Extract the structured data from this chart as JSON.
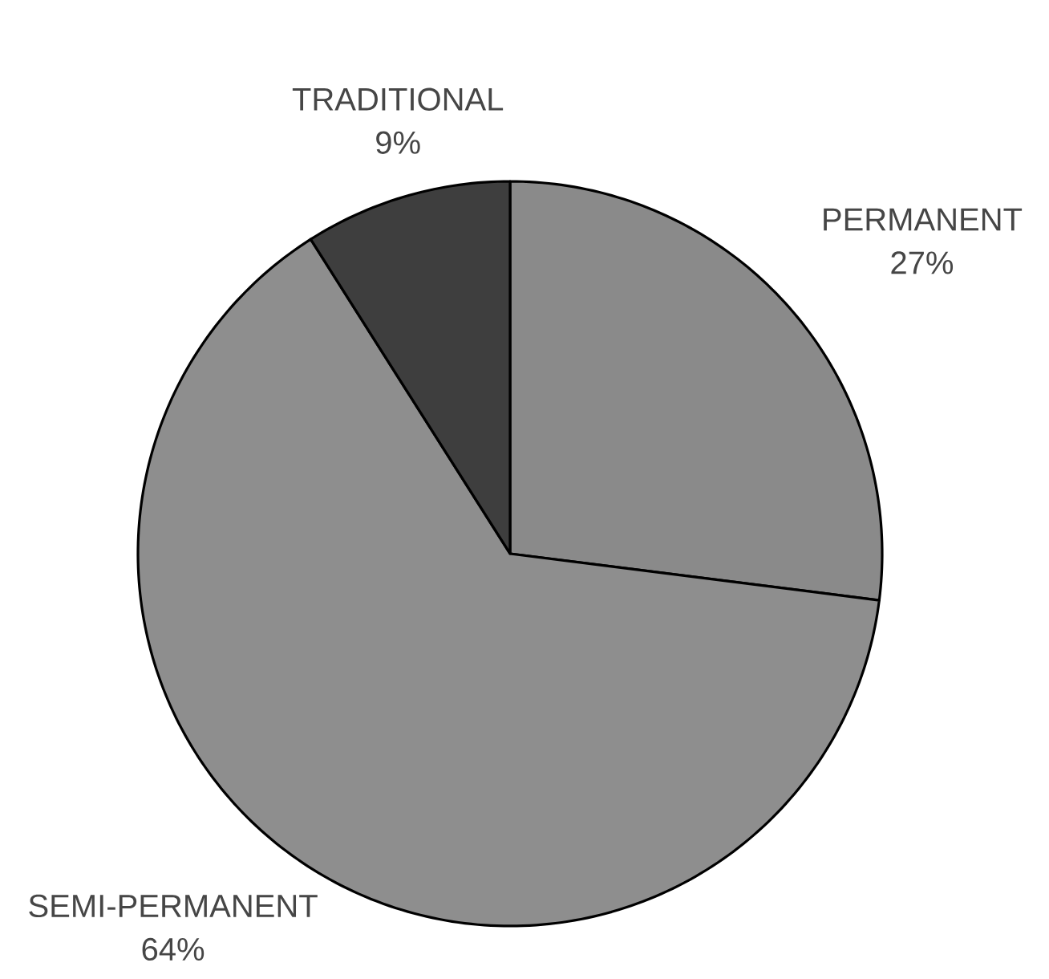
{
  "chart_data": {
    "type": "pie",
    "categories": [
      "PERMANENT",
      "SEMI-PERMANENT",
      "TRADITIONAL"
    ],
    "values": [
      27,
      64,
      9
    ],
    "value_labels": [
      "27%",
      "64%",
      "9%"
    ],
    "colors": [
      "#8a8a8a",
      "#8e8e8e",
      "#3e3e3e"
    ]
  }
}
